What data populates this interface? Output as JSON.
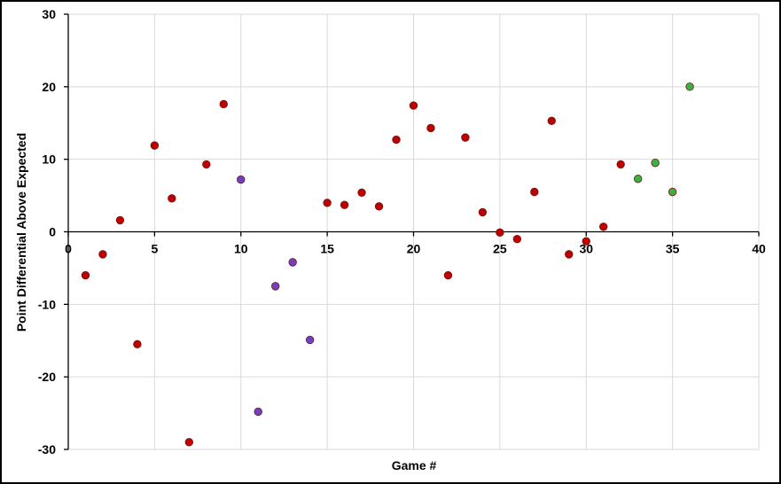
{
  "chart_data": {
    "type": "scatter",
    "title": "",
    "xlabel": "Game #",
    "ylabel": "Point Differential Above Expected",
    "xlim": [
      0,
      40
    ],
    "ylim": [
      -30,
      30
    ],
    "x_ticks": [
      0,
      5,
      10,
      15,
      20,
      25,
      30,
      35,
      40
    ],
    "y_ticks": [
      -30,
      -20,
      -10,
      0,
      10,
      20,
      30
    ],
    "x_tick_labels": [
      "0",
      "5",
      "10",
      "15",
      "20",
      "25",
      "30",
      "35",
      "40"
    ],
    "y_tick_labels": [
      "-30",
      "-20",
      "-10",
      "0",
      "10",
      "20",
      "30"
    ],
    "grid": true,
    "legend": "none",
    "colors": {
      "red": "#c00000",
      "purple": "#7040c0",
      "green": "#3cb043",
      "outline": "#6b1a1a",
      "grid": "#d9d9d9"
    },
    "series": [
      {
        "color": "#c00000",
        "points": [
          [
            1,
            -6
          ],
          [
            2,
            -3.1
          ],
          [
            3,
            1.6
          ],
          [
            4,
            -15.5
          ],
          [
            5,
            11.9
          ],
          [
            6,
            4.6
          ],
          [
            7,
            -29
          ],
          [
            8,
            9.3
          ],
          [
            9,
            17.6
          ],
          [
            15,
            4
          ],
          [
            16,
            3.7
          ],
          [
            17,
            5.4
          ],
          [
            18,
            3.5
          ],
          [
            19,
            12.7
          ],
          [
            20,
            17.4
          ],
          [
            21,
            14.3
          ],
          [
            22,
            -6
          ],
          [
            23,
            13
          ],
          [
            24,
            2.7
          ],
          [
            25,
            -0.1
          ],
          [
            26,
            -1
          ],
          [
            27,
            5.5
          ],
          [
            28,
            15.3
          ],
          [
            29,
            -3.1
          ],
          [
            30,
            -1.3
          ],
          [
            31,
            0.7
          ],
          [
            32,
            9.3
          ]
        ]
      },
      {
        "color": "#7040c0",
        "points": [
          [
            10,
            7.2
          ],
          [
            11,
            -24.8
          ],
          [
            12,
            -7.5
          ],
          [
            13,
            -4.2
          ],
          [
            14,
            -14.9
          ]
        ]
      },
      {
        "color": "#3cb043",
        "points": [
          [
            33,
            7.3
          ],
          [
            34,
            9.5
          ],
          [
            35,
            5.5
          ],
          [
            36,
            20
          ]
        ]
      }
    ]
  }
}
